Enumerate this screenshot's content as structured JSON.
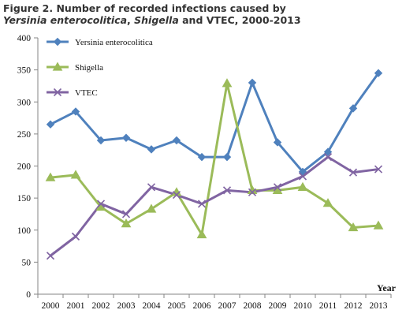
{
  "figure": {
    "title_line1": "Figure 2. Number of recorded infections caused by",
    "title_line2_a": "Yersinia enterocolitica",
    "title_line2_b": ", ",
    "title_line2_c": "Shigella",
    "title_line2_d": " and VTEC, 2000-2013"
  },
  "chart_data": {
    "type": "line",
    "title": "Figure 2. Number of recorded infections caused by Yersinia enterocolitica, Shigella and VTEC, 2000-2013",
    "xlabel": "Year",
    "ylabel": "",
    "ylim": [
      0,
      400
    ],
    "yticks": [
      0,
      50,
      100,
      150,
      200,
      250,
      300,
      350,
      400
    ],
    "categories": [
      "2000",
      "2001",
      "2002",
      "2003",
      "2004",
      "2005",
      "2006",
      "2007",
      "2008",
      "2009",
      "2010",
      "2011",
      "2012",
      "2013"
    ],
    "grid": false,
    "legend_position": "top-left",
    "series": [
      {
        "name": "Yersinia enterocolitica",
        "color": "#4f81bd",
        "marker": "diamond",
        "values": [
          265,
          285,
          240,
          244,
          226,
          240,
          214,
          214,
          330,
          237,
          191,
          222,
          290,
          345
        ]
      },
      {
        "name": "Shigella",
        "color": "#9bbb59",
        "marker": "triangle",
        "values": [
          182,
          186,
          136,
          110,
          133,
          159,
          93,
          329,
          162,
          162,
          167,
          142,
          104,
          107
        ]
      },
      {
        "name": "VTEC",
        "color": "#8064a2",
        "marker": "x",
        "values": [
          60,
          90,
          141,
          125,
          167,
          155,
          141,
          162,
          159,
          167,
          184,
          214,
          190,
          195
        ]
      }
    ]
  }
}
